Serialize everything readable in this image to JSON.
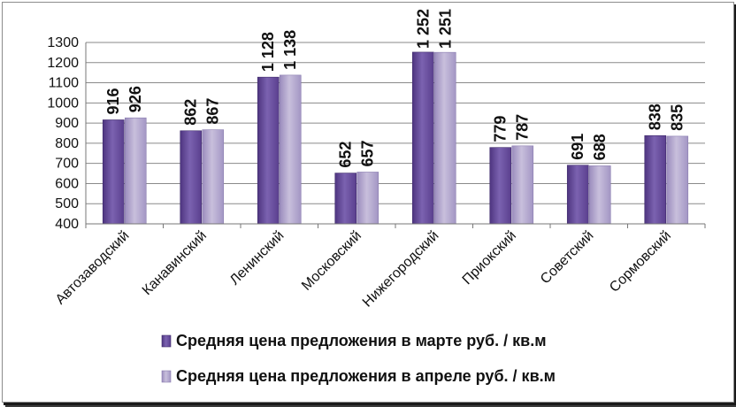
{
  "chart_data": {
    "type": "bar",
    "categories": [
      "Автозаводский",
      "Канавинский",
      "Ленинский",
      "Московский",
      "Нижегородский",
      "Приокский",
      "Советский",
      "Сормовский"
    ],
    "series": [
      {
        "name": "Средняя цена предложения в марте руб. / кв.м",
        "values": [
          916,
          862,
          1128,
          652,
          1252,
          779,
          691,
          838
        ],
        "labels": [
          "916",
          "862",
          "1 128",
          "652",
          "1 252",
          "779",
          "691",
          "838"
        ],
        "color": "#6b4fa0"
      },
      {
        "name": "Средняя цена предложения в апреле руб. / кв.м",
        "values": [
          926,
          867,
          1138,
          657,
          1251,
          787,
          688,
          835
        ],
        "labels": [
          "926",
          "867",
          "1 138",
          "657",
          "1 251",
          "787",
          "688",
          "835"
        ],
        "color": "#b1a5ca"
      }
    ],
    "ylim": [
      400,
      1300
    ],
    "yticks": [
      "400",
      "500",
      "600",
      "700",
      "800",
      "900",
      "1000",
      "1100",
      "1200",
      "1300"
    ],
    "grid": true,
    "legend": "bottom"
  }
}
